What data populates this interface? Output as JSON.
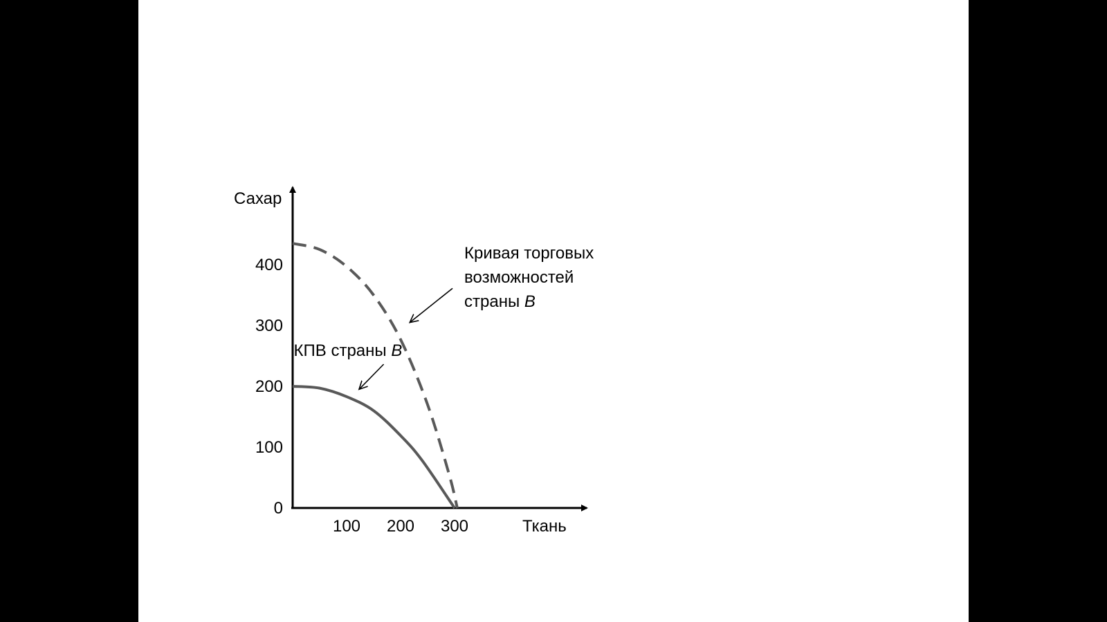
{
  "colors": {
    "background": "#000000",
    "slide": "#ffffff",
    "curve": "#595959",
    "axis": "#000000"
  },
  "chart_data": {
    "type": "line",
    "xlabel": "Ткань",
    "ylabel": "Сахар",
    "x_ticks": [
      "100",
      "200",
      "300"
    ],
    "x_tick_values": [
      100,
      200,
      300
    ],
    "y_ticks": [
      "0",
      "100",
      "200",
      "300",
      "400"
    ],
    "y_tick_values": [
      0,
      100,
      200,
      300,
      400
    ],
    "xlim": [
      0,
      550
    ],
    "ylim": [
      0,
      500
    ],
    "grid": false,
    "series": [
      {
        "name": "КПВ страны B",
        "style": "solid",
        "color": "#595959",
        "x": [
          0,
          50,
          100,
          150,
          200,
          240,
          300
        ],
        "y": [
          200,
          197,
          183,
          160,
          119,
          78,
          0
        ]
      },
      {
        "name": "Кривая торговых возможностей страны B",
        "style": "dashed",
        "color": "#595959",
        "x": [
          0,
          50,
          100,
          150,
          200,
          250,
          290,
          305
        ],
        "y": [
          435,
          425,
          397,
          350,
          277,
          170,
          55,
          0
        ]
      }
    ],
    "annotations": [
      {
        "series": 0,
        "name_prefix": "КПВ страны ",
        "name_italic": "B",
        "text_at": [
          2,
          250
        ],
        "arrow_to": [
          123,
          195
        ]
      },
      {
        "series": 1,
        "lines": [
          "Кривая торговых",
          "возможностей",
          "страны "
        ],
        "name_italic": "B",
        "text_at": [
          318,
          410
        ],
        "arrow_to": [
          217,
          305
        ]
      }
    ]
  }
}
